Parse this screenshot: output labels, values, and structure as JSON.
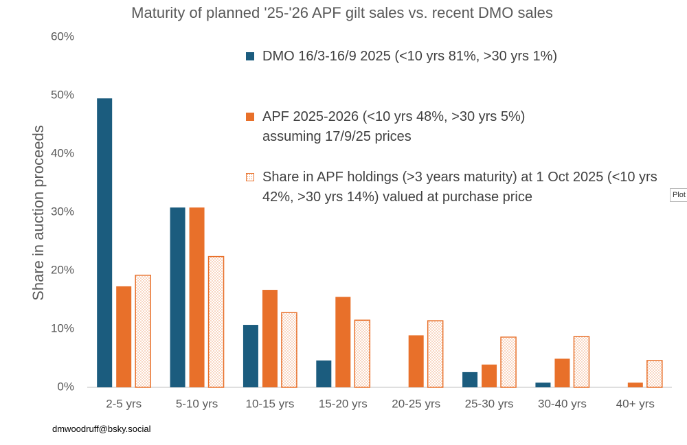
{
  "chart_data": {
    "type": "bar",
    "title": "Maturity of planned '25-'26 APF gilt sales vs. recent DMO sales",
    "y_label": "Share in auction proceeds",
    "footer": "dmwoodruff@bsky.social",
    "tooltip": "Plot",
    "categories": [
      "2-5 yrs",
      "5-10 yrs",
      "10-15 yrs",
      "15-20 yrs",
      "20-25 yrs",
      "25-30 yrs",
      "30-40 yrs",
      "40+ yrs"
    ],
    "series": [
      {
        "name": "DMO 16/3-16/9 2025 (<10 yrs 81%, >30 yrs 1%)",
        "color": "#1b5c7e",
        "pattern": "solid",
        "values": [
          49.5,
          30.8,
          10.7,
          4.6,
          0,
          2.6,
          0.8,
          0
        ]
      },
      {
        "name": "APF 2025-2026 (<10 yrs 48%, >30 yrs 5%) assuming 17/9/25 prices",
        "color": "#e8702a",
        "pattern": "solid",
        "values": [
          17.3,
          30.8,
          16.7,
          15.5,
          8.9,
          3.9,
          4.9,
          0.8
        ]
      },
      {
        "name": "Share in APF holdings (>3 years maturity) at 1 Oct 2025 (<10 yrs 42%, >30 yrs 14%) valued at purchase price",
        "color": "#e8702a",
        "pattern": "dotted",
        "values": [
          19.2,
          22.4,
          12.8,
          11.5,
          11.4,
          8.6,
          8.7,
          4.6
        ]
      }
    ],
    "ylim": [
      0,
      60
    ],
    "yticks": [
      {
        "value": 0,
        "label": "0%"
      },
      {
        "value": 10,
        "label": "10%"
      },
      {
        "value": 20,
        "label": "20%"
      },
      {
        "value": 30,
        "label": "30%"
      },
      {
        "value": 40,
        "label": "40%"
      },
      {
        "value": 50,
        "label": "50%"
      },
      {
        "value": 60,
        "label": "60%"
      }
    ],
    "grid": false
  }
}
